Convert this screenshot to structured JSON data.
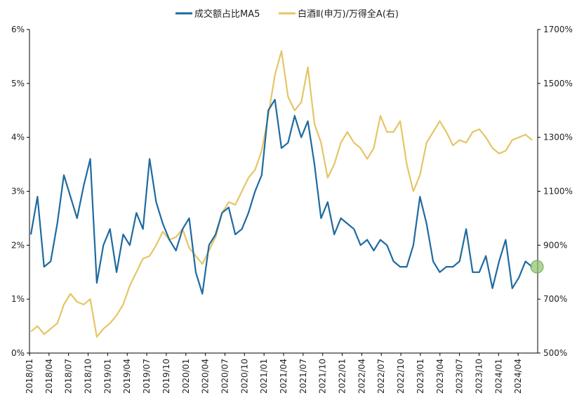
{
  "chart_data": {
    "type": "line",
    "title": "",
    "legend": {
      "position": "top",
      "items": [
        {
          "label": "成交额占比MA5",
          "color": "#1F6AA0"
        },
        {
          "label": "白酒Ⅱ(申万)/万得全A(右)",
          "color": "#E6C565"
        }
      ]
    },
    "y_left": {
      "ticks": [
        "0%",
        "1%",
        "2%",
        "3%",
        "4%",
        "5%",
        "6%"
      ],
      "range": [
        0,
        6
      ],
      "unit": "%"
    },
    "y_right": {
      "ticks": [
        "500%",
        "700%",
        "900%",
        "1100%",
        "1300%",
        "1500%",
        "1700%"
      ],
      "range": [
        500,
        1700
      ],
      "unit": "%"
    },
    "x_ticks": [
      "2018/01",
      "2018/04",
      "2018/07",
      "2018/10",
      "2019/01",
      "2019/04",
      "2019/07",
      "2019/10",
      "2020/01",
      "2020/04",
      "2020/07",
      "2020/10",
      "2021/01",
      "2021/04",
      "2021/07",
      "2021/10",
      "2022/01",
      "2022/04",
      "2022/07",
      "2022/10",
      "2023/01",
      "2023/04",
      "2023/07",
      "2023/10",
      "2024/01",
      "2024/04"
    ],
    "grid": false,
    "series": [
      {
        "name": "成交额占比MA5",
        "axis": "left",
        "color": "#1F6AA0",
        "x": [
          "2018/01",
          "2018/02",
          "2018/03",
          "2018/04",
          "2018/05",
          "2018/06",
          "2018/07",
          "2018/08",
          "2018/09",
          "2018/10",
          "2018/11",
          "2018/12",
          "2019/01",
          "2019/02",
          "2019/03",
          "2019/04",
          "2019/05",
          "2019/06",
          "2019/07",
          "2019/08",
          "2019/09",
          "2019/10",
          "2019/11",
          "2019/12",
          "2020/01",
          "2020/02",
          "2020/03",
          "2020/04",
          "2020/05",
          "2020/06",
          "2020/07",
          "2020/08",
          "2020/09",
          "2020/10",
          "2020/11",
          "2020/12",
          "2021/01",
          "2021/02",
          "2021/03",
          "2021/04",
          "2021/05",
          "2021/06",
          "2021/07",
          "2021/08",
          "2021/09",
          "2021/10",
          "2021/11",
          "2021/12",
          "2022/01",
          "2022/02",
          "2022/03",
          "2022/04",
          "2022/05",
          "2022/06",
          "2022/07",
          "2022/08",
          "2022/09",
          "2022/10",
          "2022/11",
          "2022/12",
          "2023/01",
          "2023/02",
          "2023/03",
          "2023/04",
          "2023/05",
          "2023/06",
          "2023/07",
          "2023/08",
          "2023/09",
          "2023/10",
          "2023/11",
          "2023/12",
          "2024/01",
          "2024/02",
          "2024/03",
          "2024/04",
          "2024/05"
        ],
        "values": [
          2.2,
          2.9,
          1.6,
          1.7,
          2.4,
          3.3,
          2.9,
          2.5,
          3.1,
          3.6,
          1.3,
          2.0,
          2.3,
          1.5,
          2.2,
          2.0,
          2.6,
          2.3,
          3.6,
          2.8,
          2.4,
          2.1,
          1.9,
          2.3,
          2.5,
          1.5,
          1.1,
          2.0,
          2.2,
          2.6,
          2.7,
          2.2,
          2.3,
          2.6,
          3.0,
          3.3,
          4.5,
          4.7,
          3.8,
          3.9,
          4.4,
          4.0,
          4.3,
          3.5,
          2.5,
          2.8,
          2.2,
          2.5,
          2.4,
          2.3,
          2.0,
          2.1,
          1.9,
          2.1,
          2.0,
          1.7,
          1.6,
          1.6,
          2.0,
          2.9,
          2.4,
          1.7,
          1.5,
          1.6,
          1.6,
          1.7,
          2.3,
          1.5,
          1.5,
          1.8,
          1.2,
          1.7,
          2.1,
          1.2,
          1.4,
          1.7,
          1.6
        ]
      },
      {
        "name": "白酒Ⅱ(申万)/万得全A(右)",
        "axis": "right",
        "color": "#E6C565",
        "x": [
          "2018/01",
          "2018/02",
          "2018/03",
          "2018/04",
          "2018/05",
          "2018/06",
          "2018/07",
          "2018/08",
          "2018/09",
          "2018/10",
          "2018/11",
          "2018/12",
          "2019/01",
          "2019/02",
          "2019/03",
          "2019/04",
          "2019/05",
          "2019/06",
          "2019/07",
          "2019/08",
          "2019/09",
          "2019/10",
          "2019/11",
          "2019/12",
          "2020/01",
          "2020/02",
          "2020/03",
          "2020/04",
          "2020/05",
          "2020/06",
          "2020/07",
          "2020/08",
          "2020/09",
          "2020/10",
          "2020/11",
          "2020/12",
          "2021/01",
          "2021/02",
          "2021/03",
          "2021/04",
          "2021/05",
          "2021/06",
          "2021/07",
          "2021/08",
          "2021/09",
          "2021/10",
          "2021/11",
          "2021/12",
          "2022/01",
          "2022/02",
          "2022/03",
          "2022/04",
          "2022/05",
          "2022/06",
          "2022/07",
          "2022/08",
          "2022/09",
          "2022/10",
          "2022/11",
          "2022/12",
          "2023/01",
          "2023/02",
          "2023/03",
          "2023/04",
          "2023/05",
          "2023/06",
          "2023/07",
          "2023/08",
          "2023/09",
          "2023/10",
          "2023/11",
          "2023/12",
          "2024/01",
          "2024/02",
          "2024/03",
          "2024/04",
          "2024/05"
        ],
        "values": [
          580,
          600,
          570,
          590,
          610,
          680,
          720,
          690,
          680,
          700,
          560,
          590,
          610,
          640,
          680,
          750,
          800,
          850,
          860,
          900,
          950,
          920,
          930,
          960,
          890,
          860,
          830,
          880,
          930,
          1020,
          1060,
          1050,
          1100,
          1150,
          1180,
          1250,
          1380,
          1530,
          1620,
          1450,
          1400,
          1430,
          1560,
          1350,
          1280,
          1150,
          1200,
          1280,
          1320,
          1280,
          1260,
          1220,
          1260,
          1380,
          1320,
          1320,
          1360,
          1200,
          1100,
          1160,
          1280,
          1320,
          1360,
          1320,
          1270,
          1290,
          1280,
          1320,
          1330,
          1300,
          1260,
          1240,
          1250,
          1290,
          1300,
          1310,
          1290
        ]
      }
    ]
  }
}
